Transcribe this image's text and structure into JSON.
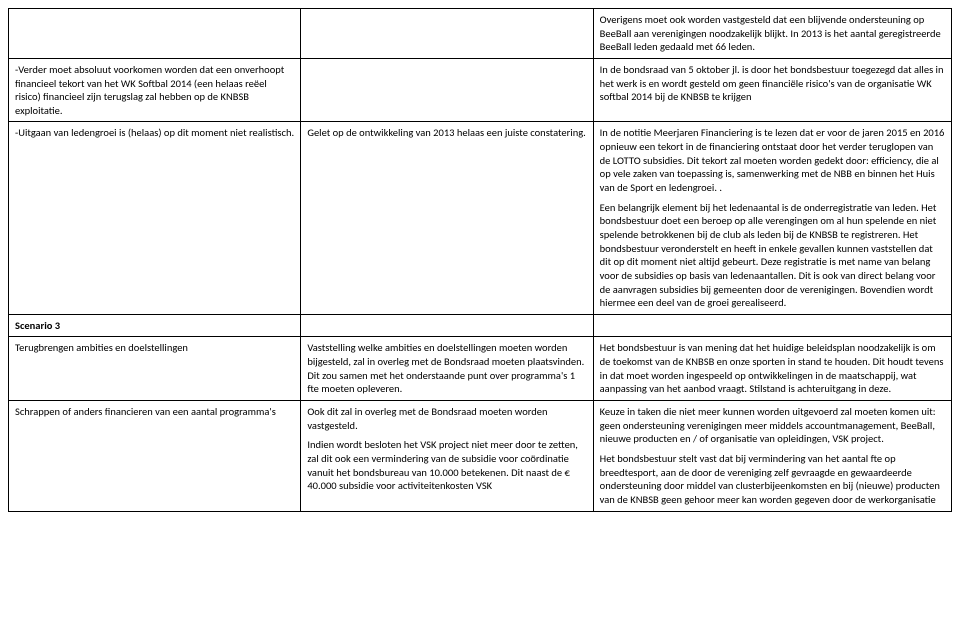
{
  "rows": [
    {
      "c1": "",
      "c2": "",
      "c3": "Overigens moet ook worden vastgesteld dat een blijvende ondersteuning op BeeBall aan verenigingen noodzakelijk blijkt. In 2013 is het aantal geregistreerde BeeBall leden gedaald met 66 leden."
    },
    {
      "c1": "-Verder moet absoluut voorkomen worden dat een onverhoopt financieel tekort van het WK Softbal 2014 (een helaas reëel risico) financieel zijn terugslag zal hebben op de KNBSB exploitatie.",
      "c2": "",
      "c3": "In de bondsraad van 5 oktober jl. is door het bondsbestuur toegezegd dat alles in het werk is en wordt gesteld om geen financiële risico's van de organisatie WK softbal 2014 bij de KNBSB te krijgen"
    },
    {
      "c1": "-Uitgaan van ledengroei is (helaas) op dit moment niet realistisch.",
      "c2": "Gelet op de ontwikkeling van 2013 helaas een juiste constatering.",
      "c3": "In de notitie Meerjaren Financiering is te lezen dat er voor de jaren 2015 en 2016 opnieuw een tekort in de financiering ontstaat door het verder teruglopen van de LOTTO subsidies. Dit tekort zal moeten worden gedekt door: efficiency, die al op vele zaken van toepassing is, samenwerking met de NBB en binnen het Huis van de Sport en ledengroei. .\nEen belangrijk element bij het ledenaantal is de onderregistratie van leden. Het bondsbestuur doet een beroep op alle verengingen om al hun spelende en niet spelende betrokkenen bij de club als leden bij de KNBSB te  registreren. Het bondsbestuur veronderstelt en heeft in enkele gevallen kunnen vaststellen dat dit op dit moment niet altijd gebeurt. Deze registratie is met name van belang voor de subsidies op basis van ledenaantallen. Dit is ook van direct belang voor de aanvragen subsidies bij gemeenten door de verenigingen. Bovendien wordt hiermee een deel van de groei gerealiseerd."
    },
    {
      "c1": "Scenario 3",
      "c2": "",
      "c3": "",
      "bold": true
    },
    {
      "c1": "Terugbrengen ambities en doelstellingen",
      "c2": "Vaststelling welke ambities en doelstellingen moeten worden bijgesteld, zal in overleg met de Bondsraad moeten plaatsvinden. Dit zou samen met het onderstaande punt over programma's 1 fte moeten opleveren.",
      "c3": "Het bondsbestuur is van mening dat het huidige beleidsplan noodzakelijk is om de toekomst van de KNBSB en onze sporten in stand te houden. Dit houdt tevens in dat moet worden ingespeeld op ontwikkelingen in de maatschappij, wat aanpassing van het aanbod vraagt. Stilstand is achteruitgang in deze."
    },
    {
      "c1": "Schrappen of anders financieren van een aantal programma's",
      "c2": "Ook dit zal in overleg met de Bondsraad moeten worden vastgesteld.\nIndien wordt besloten het VSK project niet meer door te zetten, zal dit ook een vermindering van de subsidie voor coördinatie vanuit het bondsbureau van 10.000 betekenen. Dit naast de € 40.000 subsidie voor activiteitenkosten VSK",
      "c3": "Keuze in taken die niet meer kunnen worden uitgevoerd zal moeten komen uit: geen ondersteuning verenigingen meer middels accountmanagement, BeeBall, nieuwe producten en / of organisatie van opleidingen, VSK project.\nHet bondsbestuur stelt vast dat bij vermindering van het aantal fte op breedtesport, aan de door de vereniging zelf gevraagde en gewaardeerde ondersteuning door middel van clusterbijeenkomsten en bij (nieuwe) producten van de KNBSB geen gehoor meer kan worden gegeven door de werkorganisatie"
    }
  ]
}
